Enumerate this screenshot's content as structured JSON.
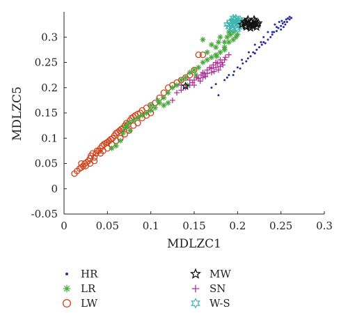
{
  "chart_data": {
    "type": "scatter",
    "xlabel": "MDLZC1",
    "ylabel": "MDLZC5",
    "xlim": [
      0,
      0.3
    ],
    "ylim": [
      -0.05,
      0.35
    ],
    "xticks": [
      "0",
      "0.05",
      "0.1",
      "0.15",
      "0.2",
      "0.25",
      "0.3"
    ],
    "yticks": [
      "-0.05",
      "0",
      "0.05",
      "0.1",
      "0.15",
      "0.2",
      "0.25",
      "0.3"
    ],
    "legend_position": "bottom",
    "grid": false,
    "series": [
      {
        "name": "HR",
        "marker": "dot",
        "color": "#2b2a9e",
        "points": [
          [
            0.175,
            0.207
          ],
          [
            0.178,
            0.185
          ],
          [
            0.185,
            0.215
          ],
          [
            0.19,
            0.225
          ],
          [
            0.196,
            0.232
          ],
          [
            0.2,
            0.24
          ],
          [
            0.203,
            0.238
          ],
          [
            0.206,
            0.248
          ],
          [
            0.21,
            0.252
          ],
          [
            0.212,
            0.258
          ],
          [
            0.215,
            0.262
          ],
          [
            0.218,
            0.27
          ],
          [
            0.22,
            0.268
          ],
          [
            0.222,
            0.275
          ],
          [
            0.225,
            0.28
          ],
          [
            0.228,
            0.285
          ],
          [
            0.23,
            0.29
          ],
          [
            0.232,
            0.288
          ],
          [
            0.235,
            0.295
          ],
          [
            0.238,
            0.3
          ],
          [
            0.24,
            0.305
          ],
          [
            0.242,
            0.31
          ],
          [
            0.245,
            0.312
          ],
          [
            0.247,
            0.318
          ],
          [
            0.25,
            0.322
          ],
          [
            0.252,
            0.327
          ],
          [
            0.254,
            0.33
          ],
          [
            0.256,
            0.335
          ],
          [
            0.258,
            0.337
          ],
          [
            0.26,
            0.34
          ],
          [
            0.262,
            0.338
          ],
          [
            0.255,
            0.325
          ],
          [
            0.25,
            0.315
          ],
          [
            0.248,
            0.33
          ],
          [
            0.253,
            0.32
          ],
          [
            0.257,
            0.33
          ],
          [
            0.245,
            0.32
          ],
          [
            0.26,
            0.335
          ],
          [
            0.243,
            0.325
          ],
          [
            0.235,
            0.31
          ],
          [
            0.23,
            0.3
          ],
          [
            0.22,
            0.285
          ],
          [
            0.213,
            0.27
          ],
          [
            0.205,
            0.255
          ],
          [
            0.17,
            0.2
          ],
          [
            0.195,
            0.225
          ],
          [
            0.188,
            0.22
          ],
          [
            0.227,
            0.29
          ],
          [
            0.24,
            0.31
          ],
          [
            0.251,
            0.332
          ]
        ]
      },
      {
        "name": "LR",
        "marker": "asterisk",
        "color": "#4aa93f",
        "points": [
          [
            0.055,
            0.08
          ],
          [
            0.06,
            0.085
          ],
          [
            0.065,
            0.095
          ],
          [
            0.068,
            0.11
          ],
          [
            0.07,
            0.12
          ],
          [
            0.072,
            0.125
          ],
          [
            0.075,
            0.13
          ],
          [
            0.076,
            0.115
          ],
          [
            0.08,
            0.135
          ],
          [
            0.085,
            0.14
          ],
          [
            0.09,
            0.145
          ],
          [
            0.095,
            0.15
          ],
          [
            0.1,
            0.155
          ],
          [
            0.105,
            0.16
          ],
          [
            0.11,
            0.17
          ],
          [
            0.115,
            0.18
          ],
          [
            0.12,
            0.19
          ],
          [
            0.125,
            0.2
          ],
          [
            0.13,
            0.205
          ],
          [
            0.135,
            0.215
          ],
          [
            0.14,
            0.22
          ],
          [
            0.145,
            0.23
          ],
          [
            0.15,
            0.235
          ],
          [
            0.155,
            0.24
          ],
          [
            0.16,
            0.25
          ],
          [
            0.165,
            0.255
          ],
          [
            0.17,
            0.26
          ],
          [
            0.175,
            0.265
          ],
          [
            0.18,
            0.27
          ],
          [
            0.185,
            0.28
          ],
          [
            0.19,
            0.29
          ],
          [
            0.195,
            0.295
          ],
          [
            0.198,
            0.3
          ],
          [
            0.2,
            0.305
          ],
          [
            0.19,
            0.31
          ],
          [
            0.18,
            0.3
          ],
          [
            0.185,
            0.29
          ],
          [
            0.175,
            0.28
          ],
          [
            0.165,
            0.27
          ],
          [
            0.16,
            0.295
          ],
          [
            0.17,
            0.285
          ],
          [
            0.178,
            0.29
          ],
          [
            0.188,
            0.3
          ],
          [
            0.192,
            0.305
          ],
          [
            0.195,
            0.31
          ],
          [
            0.115,
            0.165
          ],
          [
            0.108,
            0.175
          ],
          [
            0.12,
            0.17
          ],
          [
            0.1,
            0.165
          ],
          [
            0.142,
            0.205
          ],
          [
            0.152,
            0.225
          ],
          [
            0.185,
            0.275
          ],
          [
            0.176,
            0.262
          ]
        ]
      },
      {
        "name": "LW",
        "marker": "circle",
        "color": "#d1401a",
        "points": [
          [
            0.012,
            0.03
          ],
          [
            0.015,
            0.035
          ],
          [
            0.018,
            0.04
          ],
          [
            0.02,
            0.042
          ],
          [
            0.022,
            0.045
          ],
          [
            0.024,
            0.05
          ],
          [
            0.026,
            0.052
          ],
          [
            0.028,
            0.055
          ],
          [
            0.03,
            0.06
          ],
          [
            0.031,
            0.065
          ],
          [
            0.033,
            0.07
          ],
          [
            0.035,
            0.062
          ],
          [
            0.037,
            0.07
          ],
          [
            0.04,
            0.075
          ],
          [
            0.042,
            0.08
          ],
          [
            0.044,
            0.085
          ],
          [
            0.046,
            0.088
          ],
          [
            0.048,
            0.09
          ],
          [
            0.05,
            0.092
          ],
          [
            0.052,
            0.095
          ],
          [
            0.054,
            0.098
          ],
          [
            0.056,
            0.1
          ],
          [
            0.058,
            0.105
          ],
          [
            0.06,
            0.11
          ],
          [
            0.062,
            0.112
          ],
          [
            0.064,
            0.115
          ],
          [
            0.066,
            0.118
          ],
          [
            0.068,
            0.12
          ],
          [
            0.07,
            0.125
          ],
          [
            0.072,
            0.13
          ],
          [
            0.074,
            0.128
          ],
          [
            0.076,
            0.135
          ],
          [
            0.078,
            0.14
          ],
          [
            0.08,
            0.142
          ],
          [
            0.082,
            0.145
          ],
          [
            0.085,
            0.148
          ],
          [
            0.088,
            0.15
          ],
          [
            0.09,
            0.155
          ],
          [
            0.095,
            0.16
          ],
          [
            0.1,
            0.165
          ],
          [
            0.105,
            0.17
          ],
          [
            0.11,
            0.18
          ],
          [
            0.115,
            0.19
          ],
          [
            0.12,
            0.2
          ],
          [
            0.125,
            0.205
          ],
          [
            0.13,
            0.21
          ],
          [
            0.135,
            0.215
          ],
          [
            0.14,
            0.22
          ],
          [
            0.145,
            0.225
          ],
          [
            0.15,
            0.235
          ],
          [
            0.155,
            0.265
          ],
          [
            0.16,
            0.265
          ],
          [
            0.045,
            0.075
          ],
          [
            0.05,
            0.08
          ],
          [
            0.055,
            0.088
          ],
          [
            0.06,
            0.095
          ],
          [
            0.065,
            0.1
          ],
          [
            0.07,
            0.108
          ],
          [
            0.075,
            0.115
          ],
          [
            0.08,
            0.125
          ],
          [
            0.085,
            0.13
          ],
          [
            0.09,
            0.14
          ],
          [
            0.095,
            0.145
          ],
          [
            0.1,
            0.15
          ],
          [
            0.02,
            0.05
          ],
          [
            0.025,
            0.045
          ],
          [
            0.03,
            0.05
          ],
          [
            0.035,
            0.055
          ],
          [
            0.038,
            0.075
          ],
          [
            0.042,
            0.07
          ]
        ]
      },
      {
        "name": "MW",
        "marker": "star",
        "color": "#111111",
        "points": [
          [
            0.14,
            0.203
          ],
          [
            0.205,
            0.325
          ],
          [
            0.208,
            0.33
          ],
          [
            0.21,
            0.32
          ],
          [
            0.212,
            0.335
          ],
          [
            0.214,
            0.322
          ],
          [
            0.216,
            0.33
          ],
          [
            0.218,
            0.325
          ],
          [
            0.22,
            0.332
          ],
          [
            0.222,
            0.32
          ],
          [
            0.224,
            0.328
          ],
          [
            0.21,
            0.328
          ],
          [
            0.215,
            0.318
          ],
          [
            0.219,
            0.335
          ],
          [
            0.213,
            0.327
          ],
          [
            0.217,
            0.322
          ],
          [
            0.221,
            0.327
          ],
          [
            0.209,
            0.322
          ],
          [
            0.211,
            0.332
          ],
          [
            0.223,
            0.325
          ]
        ]
      },
      {
        "name": "SN",
        "marker": "plus",
        "color": "#b0309a",
        "points": [
          [
            0.125,
            0.175
          ],
          [
            0.13,
            0.19
          ],
          [
            0.135,
            0.195
          ],
          [
            0.14,
            0.2
          ],
          [
            0.145,
            0.205
          ],
          [
            0.148,
            0.21
          ],
          [
            0.15,
            0.215
          ],
          [
            0.153,
            0.22
          ],
          [
            0.155,
            0.218
          ],
          [
            0.158,
            0.225
          ],
          [
            0.16,
            0.23
          ],
          [
            0.162,
            0.228
          ],
          [
            0.165,
            0.235
          ],
          [
            0.168,
            0.24
          ],
          [
            0.17,
            0.238
          ],
          [
            0.172,
            0.245
          ],
          [
            0.175,
            0.25
          ],
          [
            0.177,
            0.248
          ],
          [
            0.18,
            0.255
          ],
          [
            0.182,
            0.25
          ],
          [
            0.185,
            0.255
          ],
          [
            0.175,
            0.24
          ],
          [
            0.17,
            0.23
          ],
          [
            0.165,
            0.228
          ],
          [
            0.16,
            0.22
          ],
          [
            0.178,
            0.235
          ],
          [
            0.183,
            0.245
          ],
          [
            0.186,
            0.26
          ],
          [
            0.19,
            0.265
          ],
          [
            0.15,
            0.205
          ],
          [
            0.157,
            0.213
          ],
          [
            0.163,
            0.222
          ],
          [
            0.173,
            0.232
          ],
          [
            0.18,
            0.242
          ],
          [
            0.145,
            0.215
          ],
          [
            0.135,
            0.205
          ]
        ]
      },
      {
        "name": "W-S",
        "marker": "hexstar",
        "color": "#3fb5b0",
        "points": [
          [
            0.19,
            0.32
          ],
          [
            0.192,
            0.325
          ],
          [
            0.194,
            0.33
          ],
          [
            0.196,
            0.335
          ],
          [
            0.198,
            0.33
          ],
          [
            0.2,
            0.325
          ],
          [
            0.202,
            0.328
          ],
          [
            0.204,
            0.322
          ],
          [
            0.193,
            0.318
          ],
          [
            0.197,
            0.322
          ],
          [
            0.199,
            0.318
          ],
          [
            0.201,
            0.333
          ],
          [
            0.195,
            0.338
          ],
          [
            0.203,
            0.335
          ],
          [
            0.191,
            0.33
          ],
          [
            0.205,
            0.33
          ],
          [
            0.194,
            0.315
          ],
          [
            0.2,
            0.315
          ],
          [
            0.196,
            0.327
          ],
          [
            0.188,
            0.325
          ],
          [
            0.206,
            0.325
          ],
          [
            0.198,
            0.338
          ]
        ]
      }
    ]
  }
}
